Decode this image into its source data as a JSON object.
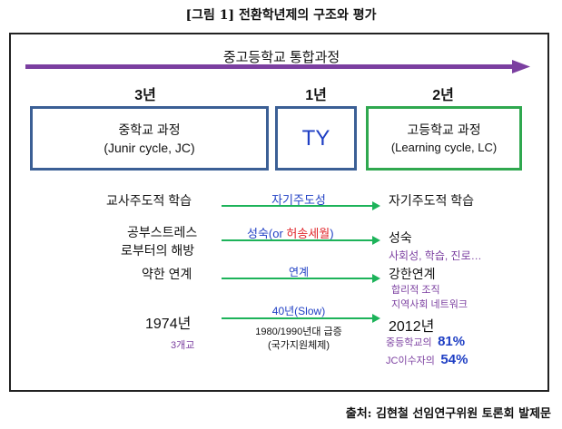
{
  "title": "[그림 1] 전환학년제의 구조와 평가",
  "header": {
    "label": "중고등학교 통합과정"
  },
  "years": {
    "jc": "3년",
    "ty": "1년",
    "lc": "2년"
  },
  "boxes": {
    "jc_line1": "중학교 과정",
    "jc_line2": "(Junir cycle, JC)",
    "ty": "TY",
    "lc_line1": "고등학교 과정",
    "lc_line2": "(Learning cycle, LC)"
  },
  "rows": {
    "r1_left": "교사주도적 학습",
    "r1_arrow": "자기주도성",
    "r1_right": "자기주도적 학습",
    "r2_left1": "공부스트레스",
    "r2_left2": "로부터의 해방",
    "r2_arrow_a": "성숙(or ",
    "r2_arrow_b": "허송세월",
    "r2_arrow_c": ")",
    "r2_right1": "성숙",
    "r2_right2": "사회성, 학습, 진로…",
    "r3_left": "약한 연계",
    "r3_arrow": "연계",
    "r3_right1": "강한연계",
    "r3_right2": "합리적 조직",
    "r3_right3": "지역사회 네트워크",
    "r4_left": "1974년",
    "r4_left_sub": "3개교",
    "r4_arrow": "40년(Slow)",
    "r4_arrow_sub1": "1980/1990년대 급증",
    "r4_arrow_sub2": "(국가지원체제)",
    "r4_right": "2012년",
    "r4_stat1_label": "중등학교의",
    "r4_stat1_value": "81%",
    "r4_stat2_label": "JC이수자의",
    "r4_stat2_value": "54%"
  },
  "source": "출처: 김현철 선임연구위원 토론회 발제문",
  "colors": {
    "header_arrow": "#7b3fa0",
    "jc_border": "#3b5f95",
    "ty_border": "#3b5f95",
    "lc_border": "#2fa84f",
    "row_arrow": "#1db35a",
    "purple_text": "#7b3fa0",
    "blue_text": "#1f3fc4",
    "red_text": "#e0262b"
  }
}
